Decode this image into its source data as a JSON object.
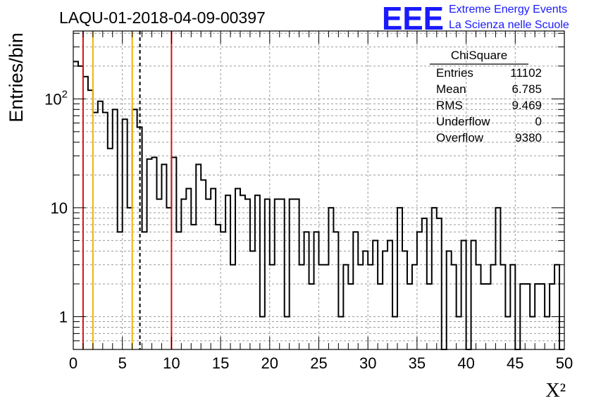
{
  "header": {
    "title": "LAQU-01-2018-04-09-00397",
    "logo_text": "EEE",
    "logo_line1": "Extreme Energy Events",
    "logo_line2": "La Scienza nelle Scuole",
    "logo_color": "#1a1aff"
  },
  "stats_box": {
    "title": "ChiSquare",
    "rows": [
      {
        "label": "Entries",
        "value": "11102"
      },
      {
        "label": "Mean",
        "value": "6.785"
      },
      {
        "label": "RMS",
        "value": "9.469"
      },
      {
        "label": "Underflow",
        "value": "0"
      },
      {
        "label": "Overflow",
        "value": "9380"
      }
    ]
  },
  "chart_data": {
    "type": "histogram",
    "xlabel": "X²",
    "ylabel": "Entries/bin",
    "xlim": [
      0,
      50
    ],
    "ylim": [
      0.5,
      420
    ],
    "yscale": "log",
    "grid": true,
    "bin_width": 0.5,
    "x_ticks": [
      0,
      5,
      10,
      15,
      20,
      25,
      30,
      35,
      40,
      45,
      50
    ],
    "x_tick_labels": [
      "0",
      "5",
      "10",
      "15",
      "20",
      "25",
      "30",
      "35",
      "40",
      "45",
      "50"
    ],
    "y_ticks": [
      1,
      10,
      100
    ],
    "y_tick_labels": [
      "1",
      "10",
      "10²"
    ],
    "values": [
      220,
      200,
      160,
      120,
      75,
      95,
      75,
      35,
      80,
      6,
      65,
      10,
      80,
      55,
      6,
      28,
      29,
      12,
      25,
      10,
      29,
      6,
      12,
      15,
      7,
      25,
      18,
      12,
      15,
      7,
      6,
      13,
      3,
      15,
      13,
      12,
      4,
      13,
      1,
      12,
      3,
      12,
      12,
      1,
      12,
      12,
      3,
      6,
      2,
      6,
      3,
      3,
      10,
      6,
      1,
      3,
      2,
      6,
      3,
      4,
      3,
      5,
      2,
      4,
      5,
      1,
      10,
      4,
      2,
      3,
      6,
      8,
      2,
      10,
      8,
      0,
      4,
      3,
      1,
      5,
      0,
      5,
      3,
      2,
      2,
      3,
      10,
      3,
      1,
      3,
      0,
      2,
      2,
      1,
      2,
      2,
      1,
      2,
      3,
      0
    ],
    "vertical_lines": [
      {
        "x": 1,
        "color": "#dd1111",
        "style": "solid"
      },
      {
        "x": 2,
        "color": "#f0b400",
        "style": "solid"
      },
      {
        "x": 6,
        "color": "#f0b400",
        "style": "solid"
      },
      {
        "x": 6.785,
        "color": "#000000",
        "style": "dashed"
      },
      {
        "x": 10,
        "color": "#dd1111",
        "style": "solid"
      }
    ]
  }
}
